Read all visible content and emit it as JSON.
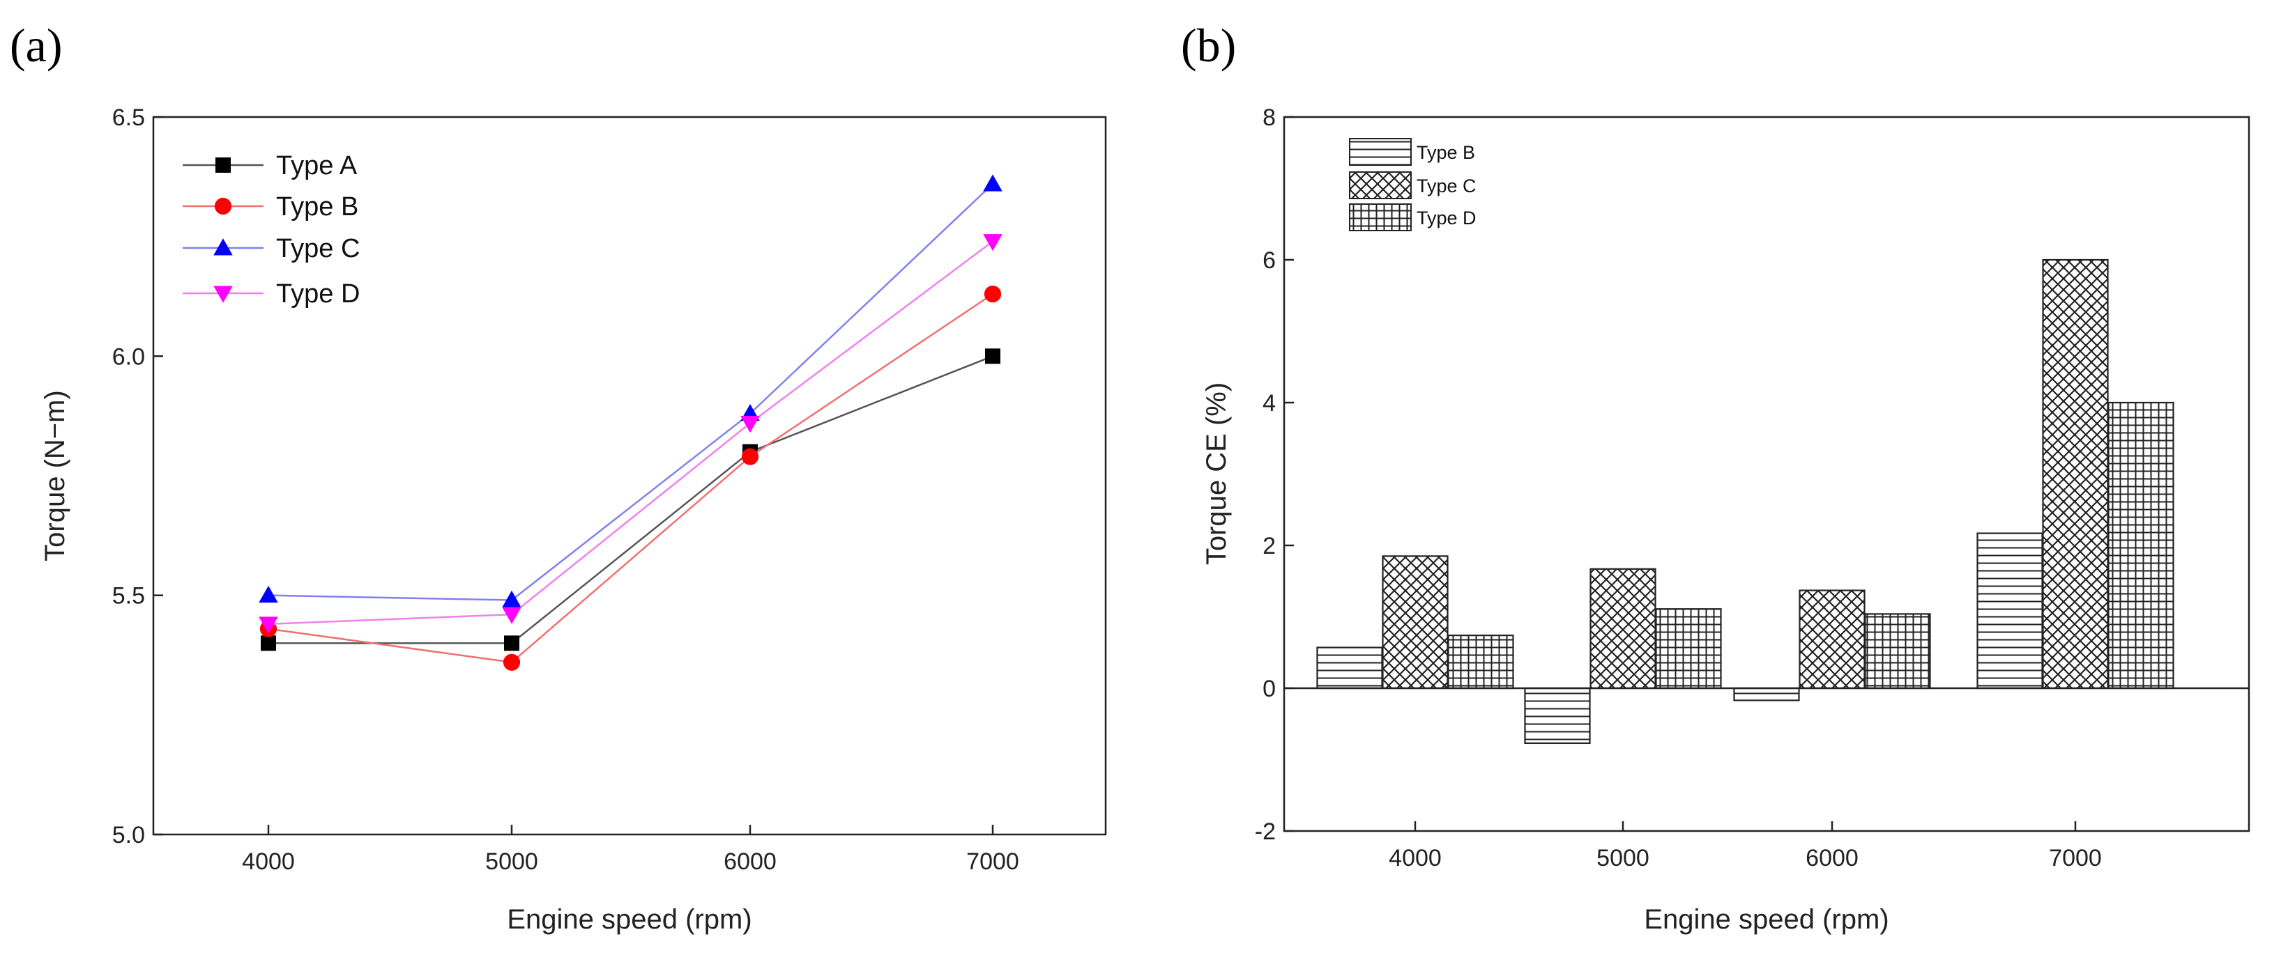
{
  "chart_data": [
    {
      "panel": "(a)",
      "type": "line",
      "xlabel": "Engine speed (rpm)",
      "ylabel": "Torque (N−m)",
      "x": [
        4000,
        5000,
        6000,
        7000
      ],
      "ylim": [
        5.0,
        6.5
      ],
      "yticks": [
        "5.0",
        "5.5",
        "6.0",
        "6.5"
      ],
      "series": [
        {
          "name": "Type A",
          "values": [
            5.4,
            5.4,
            5.8,
            6.0
          ],
          "color": "#000000",
          "line_color": "#555555",
          "marker": "square"
        },
        {
          "name": "Type B",
          "values": [
            5.43,
            5.36,
            5.79,
            6.13
          ],
          "color": "#ff0000",
          "line_color": "#f07070",
          "marker": "circle"
        },
        {
          "name": "Type C",
          "values": [
            5.5,
            5.49,
            5.88,
            6.36
          ],
          "color": "#0000ff",
          "line_color": "#8080f0",
          "marker": "triangle-up"
        },
        {
          "name": "Type D",
          "values": [
            5.44,
            5.46,
            5.86,
            6.24
          ],
          "color": "#ff00ff",
          "line_color": "#f080f0",
          "marker": "triangle-down"
        }
      ],
      "legend": "top-left"
    },
    {
      "panel": "(b)",
      "type": "bar",
      "xlabel": "Engine speed (rpm)",
      "ylabel": "Torque CE (%)",
      "categories": [
        "4000",
        "5000",
        "6000",
        "7000"
      ],
      "ylim": [
        -2,
        8
      ],
      "yticks": [
        "-2",
        "0",
        "2",
        "4",
        "6",
        "8"
      ],
      "series": [
        {
          "name": "Type B",
          "values": [
            0.57,
            -0.77,
            -0.17,
            2.17
          ],
          "pattern": "horizontal-lines"
        },
        {
          "name": "Type C",
          "values": [
            1.85,
            1.67,
            1.37,
            6.0
          ],
          "pattern": "diagonal-crosshatch"
        },
        {
          "name": "Type D",
          "values": [
            0.74,
            1.11,
            1.04,
            4.0
          ],
          "pattern": "grid"
        }
      ],
      "legend": "top-left"
    }
  ]
}
